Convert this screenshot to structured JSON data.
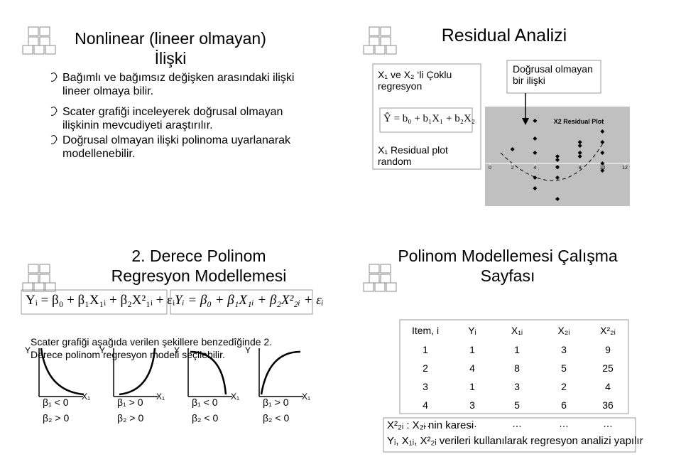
{
  "slides": [
    {
      "title": "Nonlinear (lineer olmayan) İlişki",
      "bullets": [
        "Bağımlı ve bağımsız değişken arasındaki ilişki lineer olmaya bilir.",
        "Scater grafiği inceleyerek doğrusal olmayan ilişkinin mevcudiyeti araştırılır.",
        "Doğrusal olmayan ilişki polinoma uyarlanarak modellenebilir."
      ]
    },
    {
      "title": "Residual Analizi",
      "box_left": {
        "text1": "X₁ ve X₂ ‘li Çoklu regresyon",
        "formula": "Ŷ = b₀ + b₁X₁ + b₂X₂",
        "text2": "X₁ Residual plot random"
      },
      "box_right": "Doğrusal olmayan bir ilişki",
      "plot": {
        "title": "X2 Residual Plot",
        "x": [
          2,
          4,
          4,
          4,
          4,
          4,
          6,
          6,
          6,
          6,
          6,
          8,
          8,
          8,
          8,
          10,
          10,
          10,
          10,
          10
        ],
        "y": [
          0.2,
          0.6,
          0.35,
          0.15,
          -0.2,
          -0.35,
          0.1,
          0.05,
          -0.05,
          -0.2,
          -0.5,
          0.3,
          0.25,
          0.15,
          0.1,
          0.45,
          0.3,
          0.15,
          0,
          -0.1
        ],
        "xlim": [
          0,
          12
        ],
        "ylim": [
          -0.6,
          0.8
        ],
        "xticks": [
          0,
          2,
          4,
          6,
          8,
          10,
          12
        ]
      }
    },
    {
      "title": "2. Derece Polinom Regresyon Modellemesi",
      "formula_1": "Yᵢ = β₀ + β₁X₁ᵢ + β₂X²₁ᵢ + εᵢ",
      "formula_2": "Yᵢ = β₀ + β₁X₁ᵢ + β₂X²₂ᵢ + εᵢ",
      "text": "Scater grafiği aşağıda verilen şekillere benzedîğinde 2. Derece polinom regresyon modeli seçilebilir.",
      "graphs": [
        {
          "y_label": "Y",
          "x_label": "X₁",
          "conditions": [
            "β₁ < 0",
            "β₂ > 0"
          ]
        },
        {
          "y_label": "Y",
          "x_label": "X₁",
          "conditions": [
            "β₁ > 0",
            "β₂ > 0"
          ]
        },
        {
          "y_label": "Y",
          "x_label": "X₁",
          "conditions": [
            "β₁ < 0",
            "β₂ < 0"
          ]
        },
        {
          "y_label": "Y",
          "x_label": "X₁",
          "conditions": [
            "β₁ > 0",
            "β₂ < 0"
          ]
        }
      ]
    },
    {
      "title": "Polinom Modellemesi Çalışma Sayfası",
      "table": {
        "header": [
          "Item, i",
          "Yᵢ",
          "X₁ᵢ",
          "X₂ᵢ",
          "X²₂ᵢ"
        ],
        "rows": [
          [
            1,
            1,
            1,
            3,
            9
          ],
          [
            2,
            4,
            8,
            5,
            25
          ],
          [
            3,
            1,
            3,
            2,
            4
          ],
          [
            4,
            3,
            5,
            6,
            36
          ],
          [
            "…",
            "…",
            "…",
            "…",
            "…"
          ]
        ]
      },
      "notes": [
        "X²₂ᵢ : X₂ᵢ nin karesi",
        "Yᵢ, X₁ᵢ, X²₂ᵢ verileri kullanılarak regresyon analizi yapılır"
      ]
    }
  ]
}
